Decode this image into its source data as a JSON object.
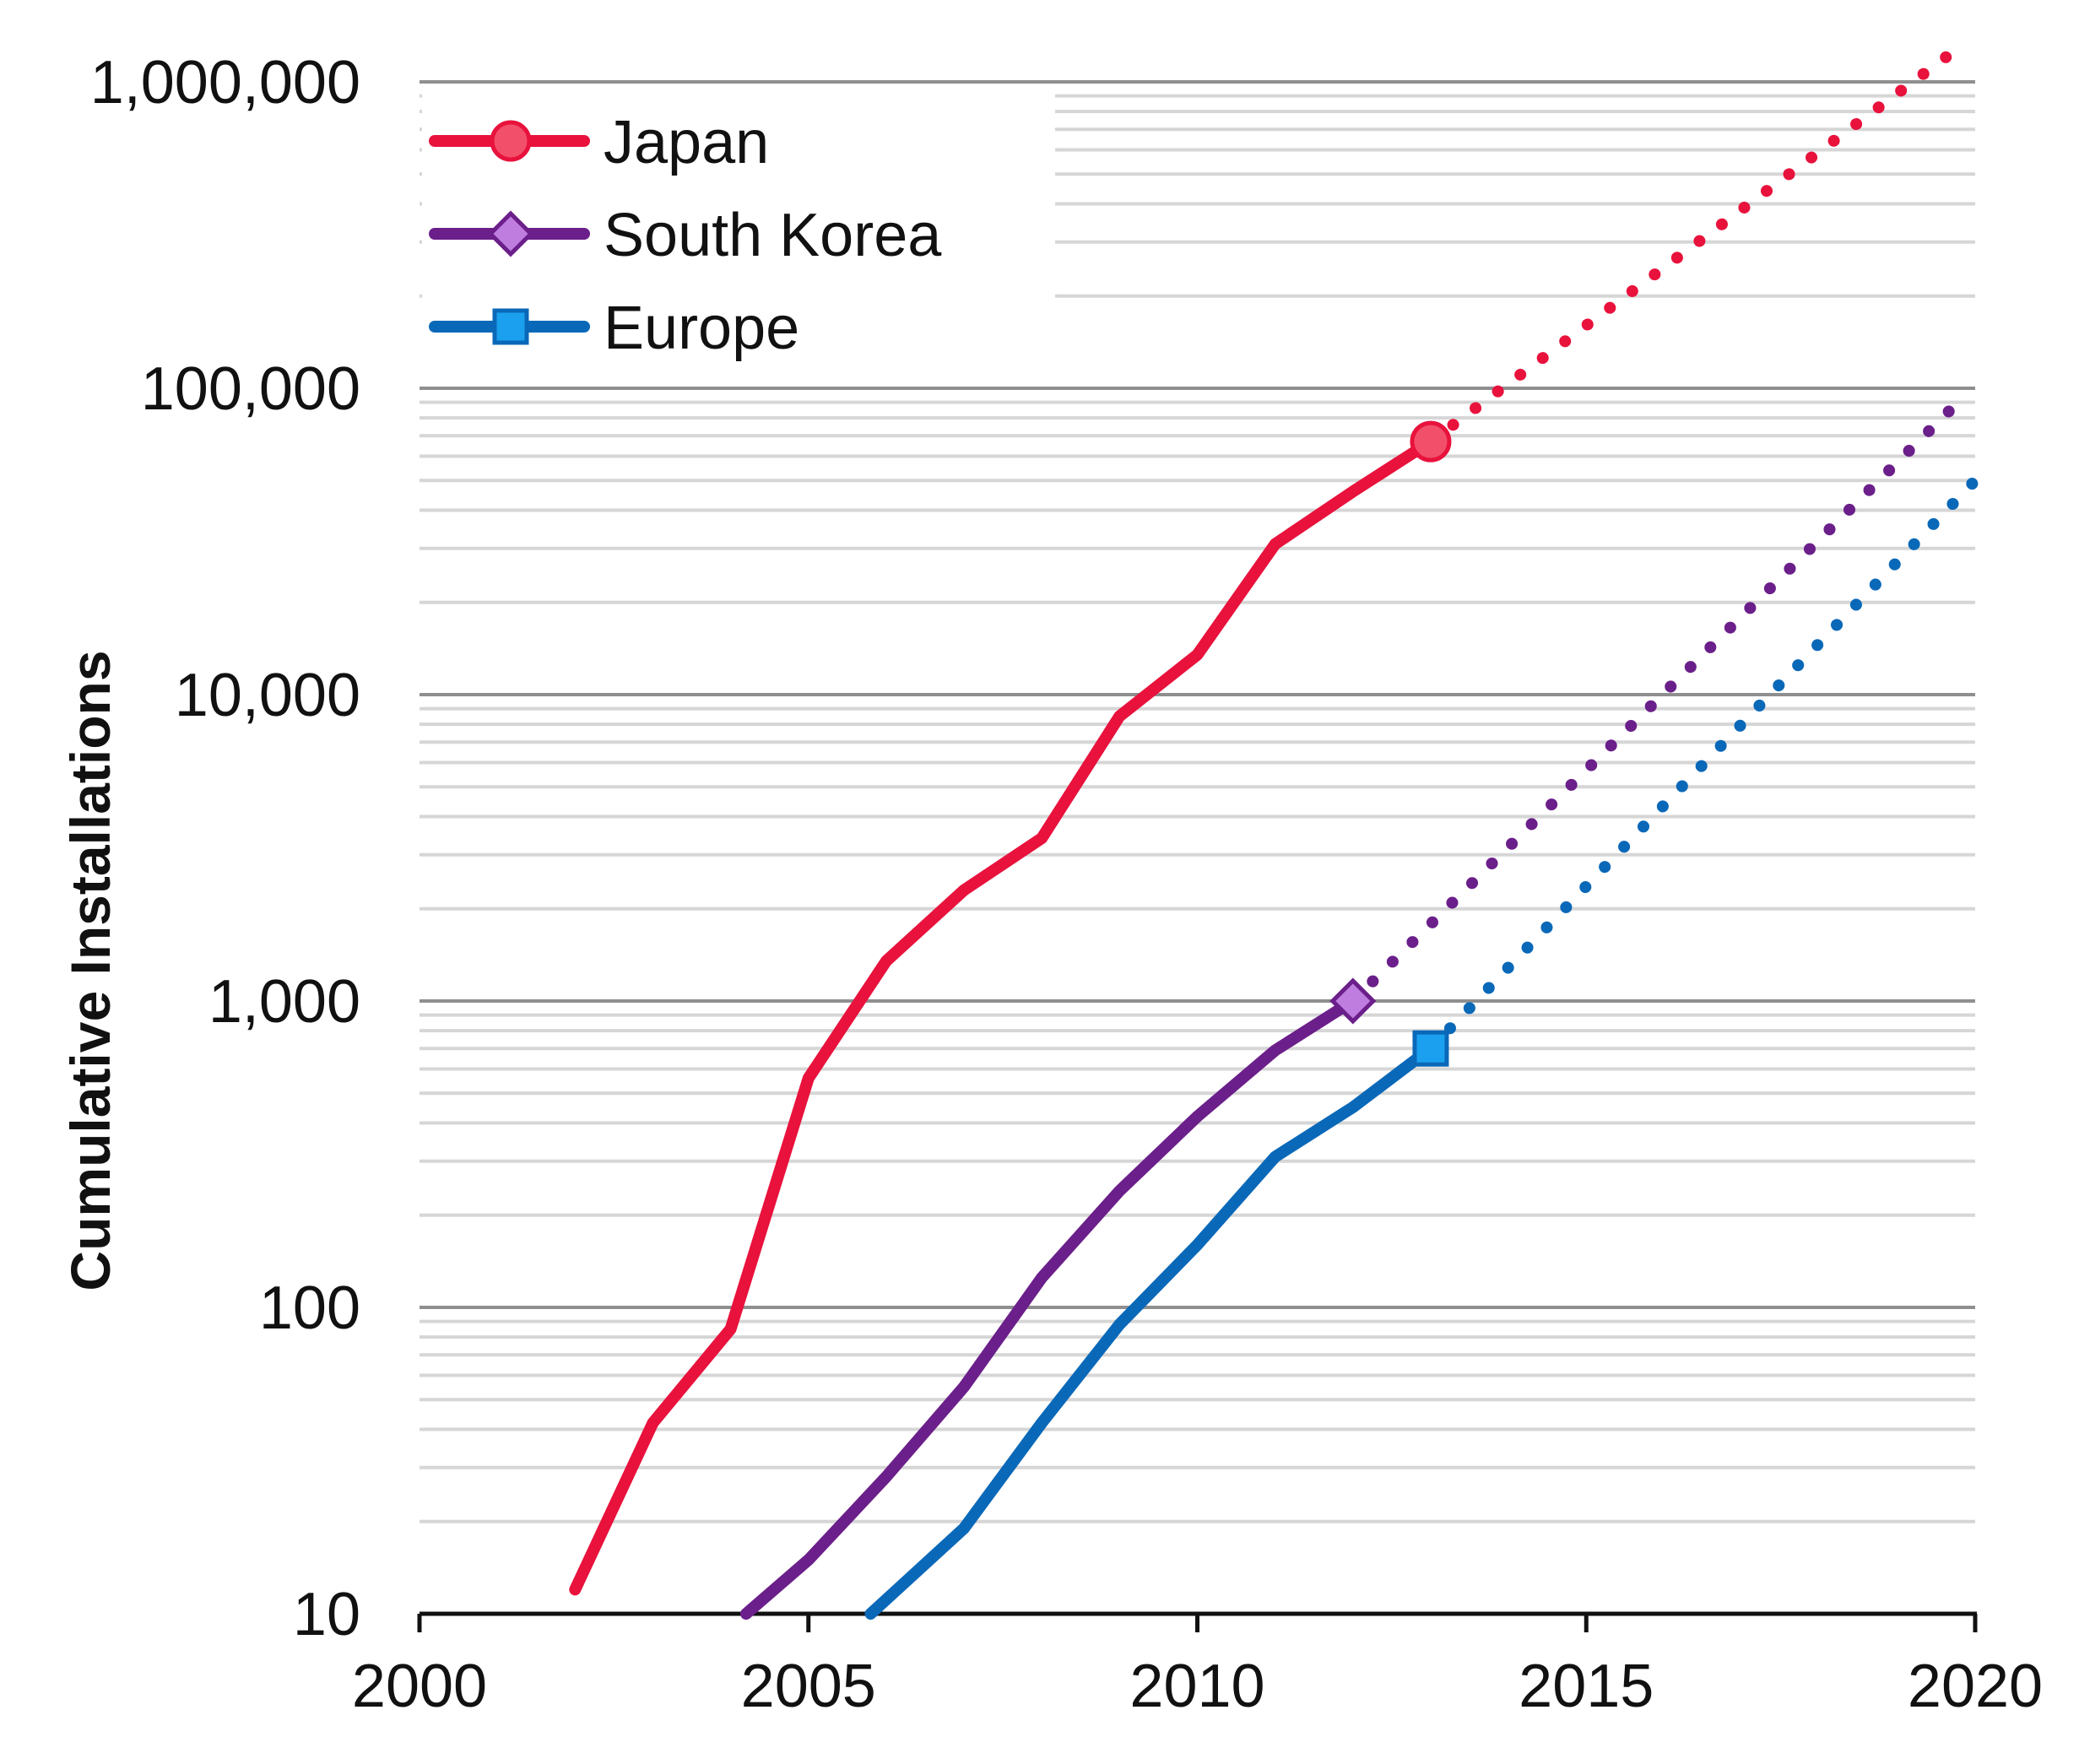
{
  "chart_data": {
    "type": "line",
    "title": "",
    "xlabel": "",
    "ylabel": "Cumulative Installations",
    "yscale": "log",
    "xlim": [
      2000,
      2020
    ],
    "ylim": [
      10,
      1000000
    ],
    "x_ticks": [
      2000,
      2005,
      2010,
      2015,
      2020
    ],
    "x_tick_labels": [
      "2000",
      "2005",
      "2010",
      "2015",
      "2020"
    ],
    "y_ticks": [
      10,
      100,
      1000,
      10000,
      100000,
      1000000
    ],
    "y_tick_labels": [
      "10",
      "100",
      "1,000",
      "10,000",
      "100,000",
      "1,000,000"
    ],
    "grid": true,
    "legend_position": "top-left",
    "series": [
      {
        "name": "Japan",
        "color": "#e8123c",
        "marker": "circle",
        "marker_fill": "#f2506a",
        "x": [
          2002,
          2003,
          2004,
          2005,
          2006,
          2007,
          2008,
          2009,
          2010,
          2011,
          2012,
          2013
        ],
        "values": [
          12,
          42,
          85,
          560,
          1350,
          2300,
          3400,
          8500,
          13500,
          31000,
          46000,
          67000
        ],
        "projection": {
          "x": [
            2013,
            2019.8
          ],
          "values": [
            67000,
            1300000
          ]
        }
      },
      {
        "name": "South Korea",
        "color": "#6b1f8a",
        "marker": "diamond",
        "marker_fill": "#c07de0",
        "x": [
          2004.2,
          2005,
          2006,
          2007,
          2008,
          2009,
          2010,
          2011,
          2012
        ],
        "values": [
          10,
          15,
          28,
          55,
          125,
          240,
          420,
          690,
          1000
        ],
        "projection": {
          "x": [
            2012,
            2019.7
          ],
          "values": [
            1000,
            86000
          ]
        }
      },
      {
        "name": "Europe",
        "color": "#0a68b8",
        "marker": "square",
        "marker_fill": "#1aa0ee",
        "x": [
          2005.8,
          2007,
          2008,
          2009,
          2010,
          2011,
          2012,
          2013
        ],
        "values": [
          10,
          19,
          42,
          88,
          160,
          310,
          450,
          700
        ],
        "projection": {
          "x": [
            2013,
            2020
          ],
          "values": [
            700,
            50000
          ]
        }
      }
    ]
  }
}
